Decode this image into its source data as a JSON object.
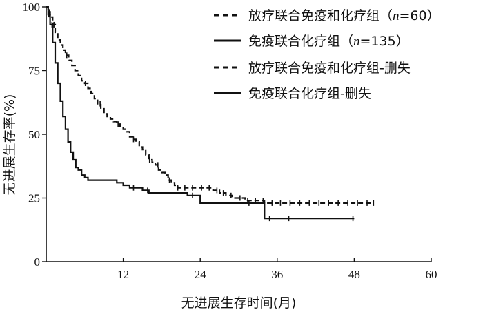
{
  "chart_data": {
    "type": "line",
    "title": "",
    "xlabel": "无进展生存时间(月)",
    "ylabel": "无进展生存率(%)",
    "xlim": [
      0,
      60
    ],
    "ylim": [
      0,
      100
    ],
    "xticks": [
      12,
      24,
      36,
      48,
      60
    ],
    "yticks": [
      0,
      25,
      50,
      75,
      100
    ],
    "x_tick_labels": [
      "12",
      "24",
      "36",
      "48",
      "60"
    ],
    "y_tick_labels": [
      "0",
      "25",
      "50",
      "75",
      "100"
    ],
    "grid": false,
    "legend_position": "top-right",
    "legend": [
      {
        "prefix": "放疗联合免疫和化疗组（",
        "n_label": "n",
        "suffix": "=60）",
        "style": "dashed",
        "color": "#111111"
      },
      {
        "prefix": "免疫联合化疗组（",
        "n_label": "n",
        "suffix": "=135）",
        "style": "solid",
        "color": "#111111"
      },
      {
        "prefix": "放疗联合免疫和化疗组-删失",
        "n_label": "",
        "suffix": "",
        "style": "dashed",
        "color": "#111111"
      },
      {
        "prefix": "免疫联合化疗组-删失",
        "n_label": "",
        "suffix": "",
        "style": "solid",
        "color": "#111111"
      }
    ],
    "series": [
      {
        "style": "dashed",
        "x": [
          0,
          0.3,
          0.6,
          1,
          1.4,
          1.8,
          2.2,
          2.6,
          3,
          3.5,
          4,
          4.5,
          5,
          5.5,
          6,
          6.5,
          7,
          7.5,
          8,
          8.5,
          9,
          9.5,
          10,
          10.5,
          11,
          11.5,
          12,
          12.5,
          13,
          13.5,
          14,
          14.5,
          15,
          15.5,
          16,
          16.5,
          17,
          17.5,
          18,
          18.5,
          19,
          19.5,
          20,
          20.5,
          21,
          22,
          23,
          24,
          25,
          26,
          27,
          28,
          29,
          30,
          31,
          32,
          33,
          34,
          35,
          36,
          38,
          40,
          42,
          44,
          46,
          48,
          50,
          51
        ],
        "y": [
          100,
          98,
          96,
          93,
          90,
          87,
          85,
          83,
          81,
          79,
          77,
          75,
          73,
          71,
          70,
          68,
          66,
          64,
          62,
          60,
          58,
          57,
          56,
          55,
          54,
          53,
          52,
          51,
          49,
          48,
          47,
          45,
          44,
          42,
          40,
          39,
          38,
          36,
          35,
          34,
          32,
          31,
          30,
          29,
          29,
          29,
          29,
          29,
          29,
          28,
          27,
          26,
          25,
          25,
          24,
          24,
          24,
          23,
          23,
          23,
          23,
          23,
          23,
          23,
          23,
          23,
          23,
          23
        ]
      },
      {
        "style": "solid",
        "x": [
          0,
          0.3,
          0.6,
          1,
          1.4,
          1.8,
          2.2,
          2.6,
          3,
          3.4,
          3.8,
          4.2,
          4.6,
          5,
          5.5,
          6,
          6.5,
          7,
          8,
          9,
          10,
          11,
          12,
          13,
          14,
          15,
          16,
          18,
          20,
          22,
          24,
          26,
          28,
          30,
          32,
          34,
          34.01,
          36,
          38,
          40,
          44,
          48
        ],
        "y": [
          100,
          97,
          93,
          86,
          78,
          70,
          63,
          57,
          52,
          47,
          43,
          40,
          37,
          36,
          34,
          33,
          32,
          32,
          32,
          32,
          32,
          31,
          30,
          29,
          29,
          28,
          27,
          27,
          27,
          26,
          23,
          23,
          23,
          23,
          23,
          23,
          17,
          17,
          17,
          17,
          17,
          17
        ]
      }
    ],
    "censor_marks": [
      {
        "series": 0,
        "x": [
          0.5,
          1.2,
          3.2,
          6.1,
          8.4,
          11.2,
          13.6,
          16.1,
          17.4,
          19.2,
          20.5,
          21.6,
          22.8,
          24.2,
          25.4,
          26.6,
          27.6,
          28.8,
          30.2,
          31.4,
          32.6,
          33.8,
          35.2,
          36.5,
          38,
          39.5,
          41,
          42.5,
          44,
          45.5,
          47,
          48.5,
          50,
          51
        ]
      },
      {
        "series": 1,
        "x": [
          0.4,
          0.9,
          13.6,
          15.8,
          22.8,
          31.6,
          34.8,
          37.8,
          47.8
        ]
      }
    ]
  }
}
